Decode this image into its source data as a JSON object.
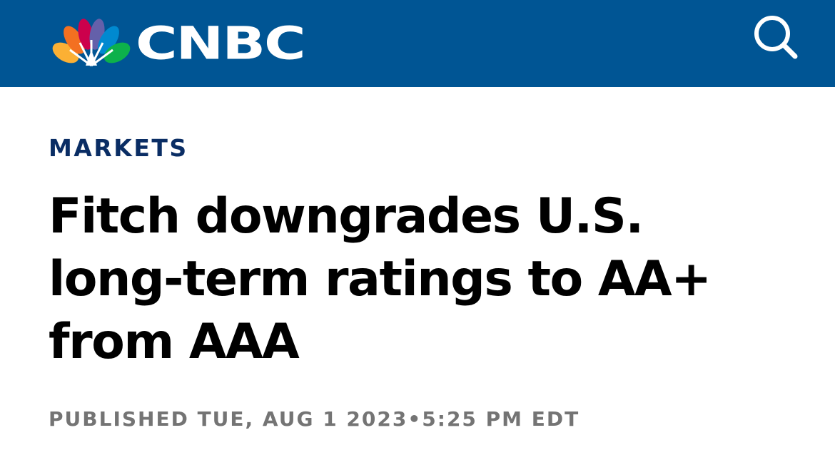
{
  "header": {
    "logo_text": "CNBC",
    "background_color": "#005594",
    "search_icon": "search-icon"
  },
  "article": {
    "section": "MARKETS",
    "headline": "Fitch downgrades U.S. long-term ratings to AA+ from AAA",
    "published_prefix": "PUBLISHED TUE, AUG 1 2023",
    "separator": "•",
    "published_time": "5:25 PM EDT"
  },
  "colors": {
    "section": "#0a2d64",
    "headline": "#000000",
    "published": "#747474",
    "peacock": [
      "#fbb034",
      "#f37021",
      "#cc004c",
      "#6460aa",
      "#0089d0",
      "#0db14b"
    ]
  }
}
